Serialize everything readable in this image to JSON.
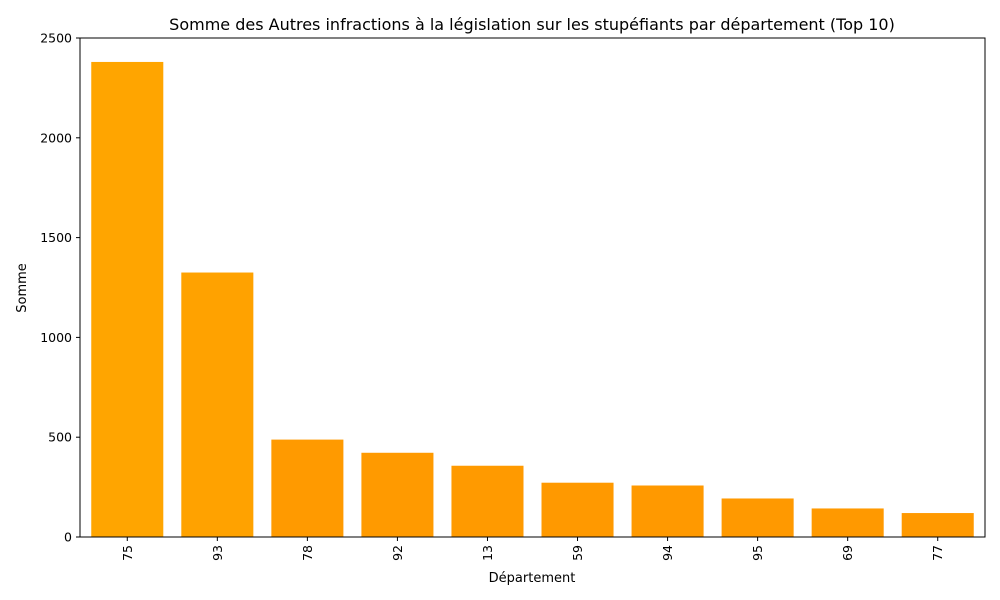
{
  "chart_data": {
    "type": "bar",
    "title": "Somme des Autres infractions à la législation sur les stupéfiants par département (Top 10)",
    "xlabel": "Département",
    "ylabel": "Somme",
    "categories": [
      "75",
      "93",
      "78",
      "92",
      "13",
      "59",
      "94",
      "95",
      "69",
      "77"
    ],
    "values": [
      2380,
      1325,
      488,
      422,
      357,
      272,
      258,
      193,
      143,
      120
    ],
    "ylim": [
      0,
      2500
    ],
    "yticks": [
      0,
      500,
      1000,
      1500,
      2000,
      2500
    ],
    "grid": false,
    "legend": "none",
    "bar_colors": [
      "#ffa500",
      "#ffa200",
      "#ff9a00",
      "#ff9a00",
      "#ff9a00",
      "#ff9900",
      "#ff9900",
      "#ff9900",
      "#ff9900",
      "#ff9900"
    ],
    "x_tick_rotation": "vertical"
  }
}
